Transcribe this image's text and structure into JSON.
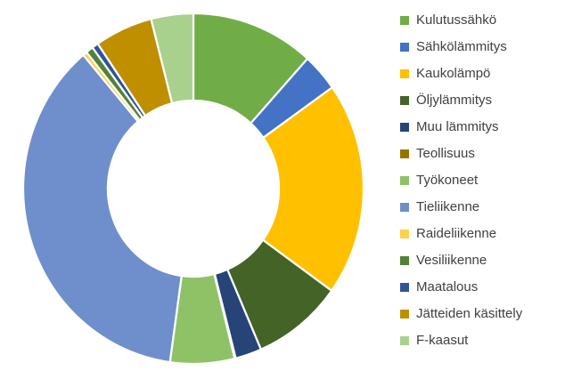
{
  "chart_data": {
    "type": "pie",
    "subtype": "donut",
    "title": "",
    "categories": [
      "Kulutussähkö",
      "Sähkölämmitys",
      "Kaukolämpö",
      "Öljylämmitys",
      "Muu lämmitys",
      "Teollisuus",
      "Työkoneet",
      "Tieliikenne",
      "Raideliikenne",
      "Vesiliikenne",
      "Maatalous",
      "Jätteiden käsittely",
      "F-kaasut"
    ],
    "values": [
      11.7,
      3.5,
      19.7,
      8.6,
      2.5,
      0.1,
      6.1,
      36.6,
      0.4,
      0.7,
      0.6,
      5.5,
      4.0
    ],
    "unit": "%",
    "colors": [
      "#70AD47",
      "#4472C4",
      "#FFC000",
      "#446327",
      "#264478",
      "#997300",
      "#8FC266",
      "#6E8FCB",
      "#FFD04A",
      "#538135",
      "#2E5597",
      "#BF8F00",
      "#A9D18E"
    ],
    "legend_position": "right",
    "legend_text_color": "#404040",
    "start_angle_deg": 0,
    "direction": "clockwise",
    "donut_hole_ratio": 0.5,
    "slice_border_color": "#FFFFFF",
    "background_color": "#FFFFFF"
  }
}
